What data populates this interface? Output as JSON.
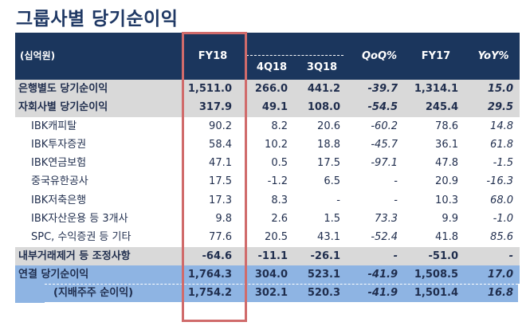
{
  "title": "그룹사별 당기순이익",
  "table": {
    "unit_label": "(십억원)",
    "columns": {
      "fy18": "FY18",
      "q4_18": "4Q18",
      "q3_18": "3Q18",
      "qoq": "QoQ%",
      "fy17": "FY17",
      "yoy": "YoY%"
    },
    "rows": [
      {
        "label": "은행별도 당기순이익",
        "fy18": "1,511.0",
        "q4_18": "266.0",
        "q3_18": "441.2",
        "qoq": "-39.7",
        "fy17": "1,314.1",
        "yoy": "15.0",
        "style": "gray"
      },
      {
        "label": "자회사별 당기순이익",
        "fy18": "317.9",
        "q4_18": "49.1",
        "q3_18": "108.0",
        "qoq": "-54.5",
        "fy17": "245.4",
        "yoy": "29.5",
        "style": "gray"
      },
      {
        "label": "IBK캐피탈",
        "fy18": "90.2",
        "q4_18": "8.2",
        "q3_18": "20.6",
        "qoq": "-60.2",
        "fy17": "78.6",
        "yoy": "14.8",
        "style": "white"
      },
      {
        "label": "IBK투자증권",
        "fy18": "58.4",
        "q4_18": "10.2",
        "q3_18": "18.8",
        "qoq": "-45.7",
        "fy17": "36.1",
        "yoy": "61.8",
        "style": "white"
      },
      {
        "label": "IBK연금보험",
        "fy18": "47.1",
        "q4_18": "0.5",
        "q3_18": "17.5",
        "qoq": "-97.1",
        "fy17": "47.8",
        "yoy": "-1.5",
        "style": "white"
      },
      {
        "label": "중국유한공사",
        "fy18": "17.5",
        "q4_18": "-1.2",
        "q3_18": "6.5",
        "qoq": "-",
        "fy17": "20.9",
        "yoy": "-16.3",
        "style": "white"
      },
      {
        "label": "IBK저축은행",
        "fy18": "17.3",
        "q4_18": "8.3",
        "q3_18": "-",
        "qoq": "-",
        "fy17": "10.3",
        "yoy": "68.0",
        "style": "white"
      },
      {
        "label": "IBK자산운용 등  3개사",
        "fy18": "9.8",
        "q4_18": "2.6",
        "q3_18": "1.5",
        "qoq": "73.3",
        "fy17": "9.9",
        "yoy": "-1.0",
        "style": "white"
      },
      {
        "label": "SPC, 수익증권 등 기타",
        "fy18": "77.6",
        "q4_18": "20.5",
        "q3_18": "43.1",
        "qoq": "-52.4",
        "fy17": "41.8",
        "yoy": "85.6",
        "style": "white"
      },
      {
        "label": "내부거래제거 등 조정사항",
        "fy18": "-64.6",
        "q4_18": "-11.1",
        "q3_18": "-26.1",
        "qoq": "-",
        "fy17": "-51.0",
        "yoy": "-",
        "style": "gray"
      },
      {
        "label": "연결 당기순이익",
        "fy18": "1,764.3",
        "q4_18": "304.0",
        "q3_18": "523.1",
        "qoq": "-41.9",
        "fy17": "1,508.5",
        "yoy": "17.0",
        "style": "blue"
      },
      {
        "label": "(지배주주 순이익)",
        "fy18": "1,754.2",
        "q4_18": "302.1",
        "q3_18": "520.3",
        "qoq": "-41.9",
        "fy17": "1,501.4",
        "yoy": "16.8",
        "style": "blue-sub"
      }
    ]
  },
  "colors": {
    "header_bg": "#1b365d",
    "gray_row": "#d9d9d9",
    "blue_row": "#8eb4e3",
    "highlight_box": "#d06b6b",
    "title": "#1f3864"
  }
}
